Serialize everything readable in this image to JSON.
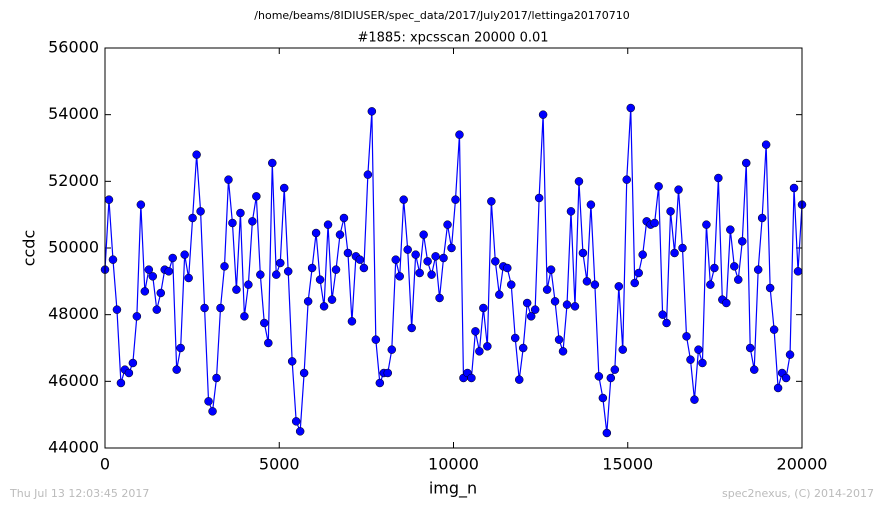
{
  "chart_data": {
    "type": "line",
    "suptitle": "/home/beams/8IDIUSER/spec_data/2017/July2017/lettinga20170710",
    "title": "#1885: xpcsscan 20000 0.01",
    "xlabel": "img_n",
    "ylabel": "ccdc",
    "color": "#0000ff",
    "marker": "circle",
    "x": [
      0,
      114,
      229,
      343,
      457,
      571,
      686,
      800,
      914,
      1029,
      1143,
      1257,
      1371,
      1486,
      1600,
      1714,
      1829,
      1943,
      2057,
      2171,
      2286,
      2400,
      2514,
      2629,
      2743,
      2857,
      2971,
      3086,
      3200,
      3314,
      3429,
      3543,
      3657,
      3771,
      3886,
      4000,
      4114,
      4229,
      4343,
      4457,
      4571,
      4686,
      4800,
      4914,
      5029,
      5143,
      5257,
      5371,
      5486,
      5600,
      5714,
      5829,
      5943,
      6057,
      6171,
      6286,
      6400,
      6514,
      6629,
      6743,
      6857,
      6971,
      7086,
      7200,
      7314,
      7429,
      7543,
      7657,
      7771,
      7886,
      8000,
      8114,
      8229,
      8343,
      8457,
      8571,
      8686,
      8800,
      8914,
      9029,
      9143,
      9257,
      9371,
      9486,
      9600,
      9714,
      9829,
      9943,
      10057,
      10171,
      10286,
      10400,
      10514,
      10629,
      10743,
      10857,
      10971,
      11086,
      11200,
      11314,
      11429,
      11543,
      11657,
      11771,
      11886,
      12000,
      12114,
      12229,
      12343,
      12457,
      12571,
      12686,
      12800,
      12914,
      13029,
      13143,
      13257,
      13371,
      13486,
      13600,
      13714,
      13829,
      13943,
      14057,
      14171,
      14286,
      14400,
      14514,
      14629,
      14743,
      14857,
      14971,
      15086,
      15200,
      15314,
      15429,
      15543,
      15657,
      15771,
      15886,
      16000,
      16114,
      16229,
      16343,
      16457,
      16571,
      16686,
      16800,
      16914,
      17029,
      17143,
      17257,
      17371,
      17486,
      17600,
      17714,
      17829,
      17943,
      18057,
      18171,
      18286,
      18400,
      18514,
      18629,
      18743,
      18857,
      18971,
      19086,
      19200,
      19314,
      19429,
      19543,
      19657,
      19771,
      19886,
      20000
    ],
    "values": [
      49350,
      51450,
      49650,
      48150,
      45950,
      46350,
      46250,
      46550,
      47950,
      51300,
      48700,
      49350,
      49150,
      48150,
      48650,
      49350,
      49300,
      49700,
      46350,
      47000,
      49800,
      49100,
      50900,
      52800,
      51100,
      48200,
      45400,
      45100,
      46100,
      48200,
      49450,
      52050,
      50750,
      48750,
      51050,
      47950,
      48900,
      50800,
      51550,
      49200,
      47750,
      47150,
      52550,
      49200,
      49550,
      51800,
      49300,
      46600,
      44800,
      44500,
      46250,
      48400,
      49400,
      50450,
      49050,
      48250,
      50700,
      48450,
      49350,
      50400,
      50900,
      49850,
      47800,
      49750,
      49650,
      49400,
      52200,
      54100,
      47250,
      45950,
      46250,
      46250,
      46950,
      49650,
      49150,
      51450,
      49950,
      47600,
      49800,
      49250,
      50400,
      49600,
      49200,
      49750,
      48500,
      49700,
      50700,
      50000,
      51450,
      53400,
      46100,
      46250,
      46100,
      47500,
      46900,
      48200,
      47050,
      51400,
      49600,
      48600,
      49450,
      49400,
      48900,
      47300,
      46050,
      47000,
      48350,
      47950,
      48150,
      51500,
      54000,
      48750,
      49350,
      48400,
      47250,
      46900,
      48300,
      51100,
      48250,
      52000,
      49850,
      49000,
      51300,
      48900,
      46150,
      45500,
      44450,
      46100,
      46350,
      48850,
      46950,
      52050,
      54200,
      48950,
      49250,
      49800,
      50800,
      50700,
      50750,
      51850,
      48000,
      47750,
      51100,
      49850,
      51750,
      50000,
      47350,
      46650,
      45450,
      46950,
      46550,
      50700,
      48900,
      49400,
      52100,
      48450,
      48350,
      50550,
      49450,
      49050,
      50200,
      52550,
      47000,
      46350,
      49350,
      50900,
      53100,
      48800,
      47550,
      45800,
      46250,
      46100,
      46800,
      51800,
      49300,
      51300
    ],
    "xlim": [
      0,
      20000
    ],
    "xticks": [
      0,
      5000,
      10000,
      15000,
      20000
    ],
    "ylim": [
      44000,
      56000
    ],
    "yticks": [
      44000,
      46000,
      48000,
      50000,
      52000,
      54000,
      56000
    ],
    "grid": false
  },
  "footer": {
    "timestamp": "Thu Jul 13 12:03:45 2017",
    "credit": "spec2nexus, (C) 2014-2017"
  }
}
